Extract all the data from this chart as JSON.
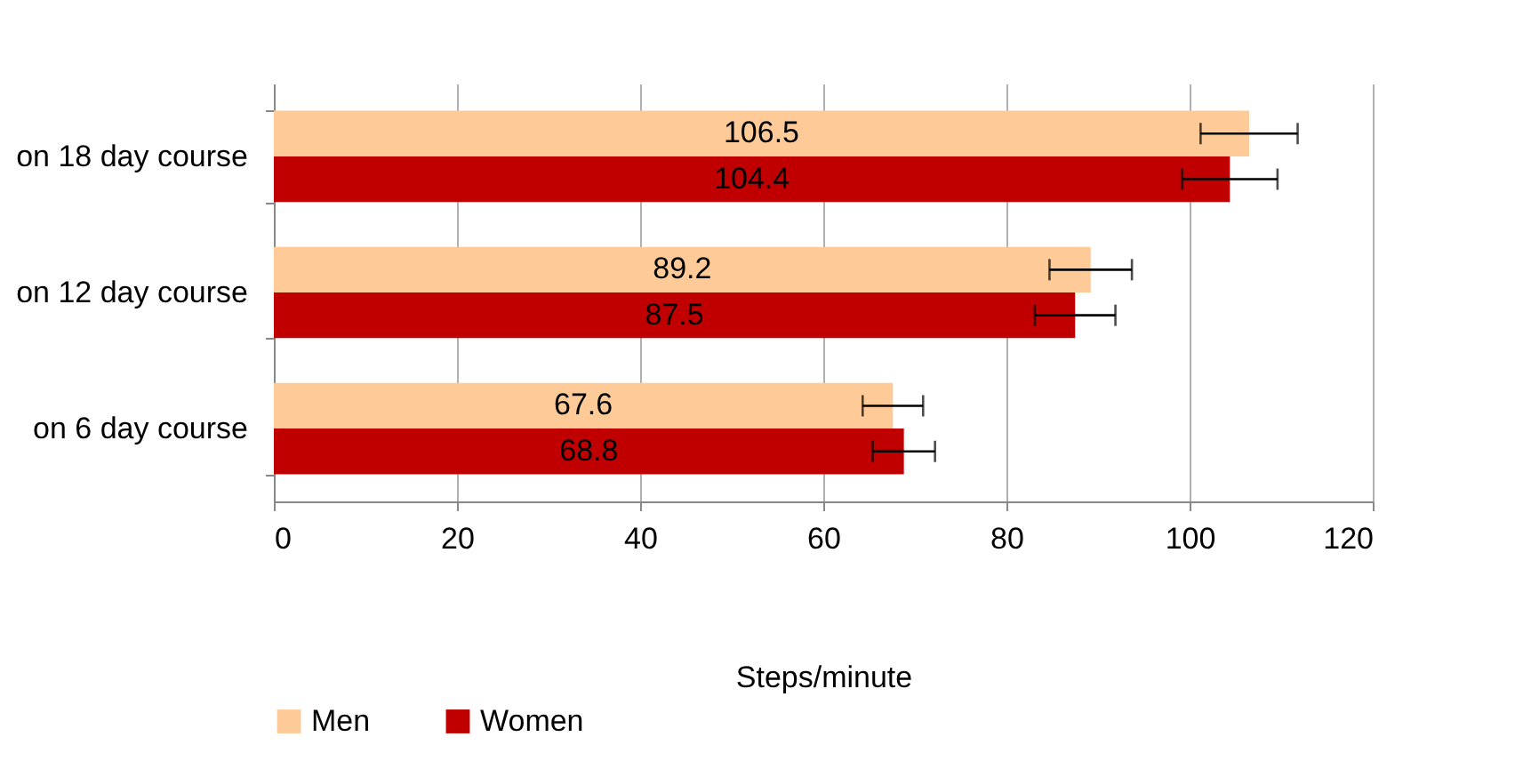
{
  "chart_data": {
    "type": "bar",
    "orientation": "horizontal",
    "xlabel": "Steps/minute",
    "categories": [
      "on 18 day course",
      "on 12 day course",
      "on 6 day course"
    ],
    "series": [
      {
        "name": "Men",
        "color": "#fdca98",
        "values": [
          106.5,
          89.2,
          67.6
        ],
        "errors": [
          5.3,
          4.5,
          3.3
        ]
      },
      {
        "name": "Women",
        "color": "#c00000",
        "values": [
          104.4,
          87.5,
          68.8
        ],
        "errors": [
          5.2,
          4.4,
          3.4
        ]
      }
    ],
    "xlim": [
      0,
      120
    ],
    "xticks": [
      0,
      20,
      40,
      60,
      80,
      100,
      120
    ],
    "grid": "x",
    "legend": "bottom",
    "data_labels": true
  }
}
